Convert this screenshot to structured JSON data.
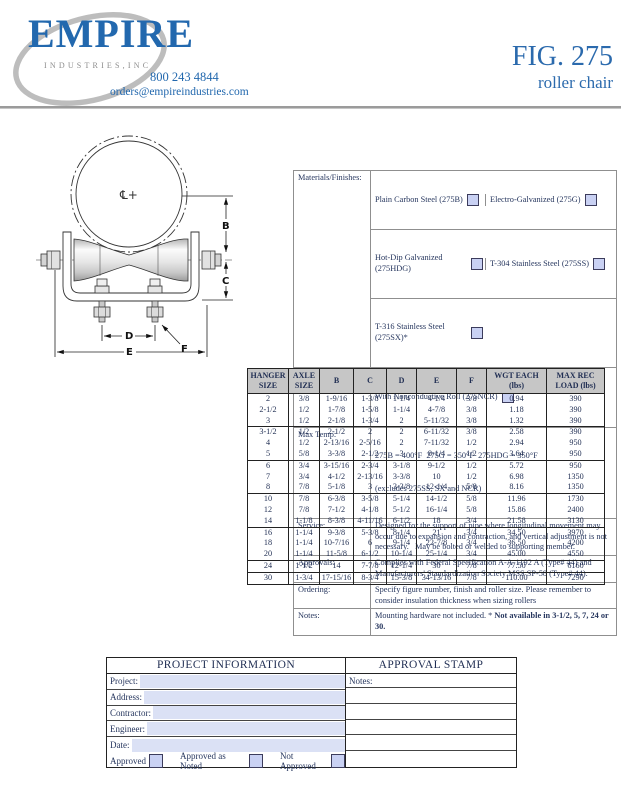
{
  "header": {
    "logo_name": "EMPIRE",
    "logo_sub": "INDUSTRIES,INC",
    "phone": "800 243 4844",
    "email": "orders@empireindustries.com",
    "figure": "FIG. 275",
    "product": "roller chair"
  },
  "colors": {
    "brand_blue": "#2268ae",
    "navy_text": "#1f2d52",
    "checkbox_fill": "#c9d1f3",
    "input_fill": "#dbe1f5",
    "table_header_bg": "#c6c6c6"
  },
  "drawing": {
    "centerline_symbol": "℄+",
    "dim_b": "B",
    "dim_c": "C",
    "dim_d": "D",
    "dim_e": "E",
    "dim_f": "F"
  },
  "specs": {
    "labels": {
      "materials": "Materials/Finishes:",
      "variants": "Variants:",
      "max_temp": "Max Temp:",
      "service": "Service:",
      "approvals": "Approvals:",
      "ordering": "Ordering:",
      "notes": "Notes:"
    },
    "materials": [
      [
        "Plain Carbon Steel (275B)",
        "Electro-Galvanized (275G)"
      ],
      [
        "Hot-Dip Galvanized (275HDG)",
        "T-304 Stainless Steel (275SS)"
      ],
      [
        "T-316 Stainless Steel (275SX)*"
      ]
    ],
    "variants_text": "With Nonconductive Roll (275NCR)",
    "max_temp_line1": "275B = 400°F  275G = 350°F  275HDG = 350°F",
    "max_temp_line2": "(excludes 275SS, SX and NCR)",
    "service_text": "Designed for the support of pipe where longitudinal movement may occur due to expansion and contraction, and vertical adjustment is not necessary.   May be bolted or welded to supporting member.",
    "approvals_text": "Complies with Federal Specification A-A-1192 A (Type# 44) and Manufacturers' Standardization Society MSS SP-58 (Type# 44).",
    "ordering_text": "Specify figure number, finish and roller size. Please remember to consider insulation thickness when sizing rollers",
    "notes_regular": "Mounting hardware not included. * ",
    "notes_bold": "Not available in 3-1/2, 5, 7, 24 or 30."
  },
  "size_table": {
    "headers": [
      "HANGER SIZE",
      "AXLE SIZE",
      "B",
      "C",
      "D",
      "E",
      "F",
      "WGT EACH (lbs)",
      "MAX REC LOAD (lbs)"
    ],
    "groups": [
      [
        [
          "2",
          "3/8",
          "1-9/16",
          "1-3/8",
          "1-1/4",
          "4-1/4",
          "3/8",
          "0.94",
          "390"
        ],
        [
          "2-1/2",
          "1/2",
          "1-7/8",
          "1-5/8",
          "1-1/4",
          "4-7/8",
          "3/8",
          "1.18",
          "390"
        ],
        [
          "3",
          "1/2",
          "2-1/8",
          "1-3/4",
          "2",
          "5-11/32",
          "3/8",
          "1.32",
          "390"
        ]
      ],
      [
        [
          "3-1/2",
          "1/2",
          "2-1/2",
          "2",
          "2",
          "6-11/32",
          "3/8",
          "2.58",
          "390"
        ],
        [
          "4",
          "1/2",
          "2-13/16",
          "2-5/16",
          "2",
          "7-11/32",
          "1/2",
          "2.94",
          "950"
        ],
        [
          "5",
          "5/8",
          "3-3/8",
          "2-1/2",
          "3",
          "8-1/4",
          "1/2",
          "3.64",
          "950"
        ]
      ],
      [
        [
          "6",
          "3/4",
          "3-15/16",
          "2-3/4",
          "3-1/8",
          "9-1/2",
          "1/2",
          "5.72",
          "950"
        ],
        [
          "7",
          "3/4",
          "4-1/2",
          "2-13/16",
          "3-3/8",
          "10",
          "1/2",
          "6.98",
          "1350"
        ],
        [
          "8",
          "7/8",
          "5-1/8",
          "3",
          "3-3/8",
          "12-1/4",
          "5/8",
          "8.16",
          "1350"
        ]
      ],
      [
        [
          "10",
          "7/8",
          "6-3/8",
          "3-5/8",
          "5-1/4",
          "14-1/2",
          "5/8",
          "11.96",
          "1730"
        ],
        [
          "12",
          "7/8",
          "7-1/2",
          "4-1/8",
          "5-1/2",
          "16-1/4",
          "5/8",
          "15.86",
          "2400"
        ],
        [
          "14",
          "1-1/8",
          "8-3/8",
          "4-11/16",
          "6-1/2",
          "18",
          "3/4",
          "21.58",
          "3130"
        ]
      ],
      [
        [
          "16",
          "1-1/4",
          "9-3/8",
          "5-3/8",
          "8-1/4",
          "21",
          "3/4",
          "34.50",
          "3970"
        ],
        [
          "18",
          "1-1/4",
          "10-7/16",
          "6",
          "9-1/4",
          "22-7/8",
          "3/4",
          "36.50",
          "4200"
        ],
        [
          "20",
          "1-1/4",
          "11-5/8",
          "6-1/2",
          "10-1/4",
          "25-1/4",
          "3/4",
          "45.00",
          "4550"
        ]
      ],
      [
        [
          "24",
          "1-1/2",
          "14",
          "7-7/8",
          "12-1/4",
          "30",
          "7/8",
          "77.50",
          "6160"
        ]
      ],
      [
        [
          "30",
          "1-3/4",
          "17-15/16",
          "8-3/4",
          "15-3/8",
          "34-13/16",
          "7/8",
          "110.00",
          "7290"
        ]
      ]
    ]
  },
  "form": {
    "project_info_title": "PROJECT INFORMATION",
    "approval_stamp_title": "APPROVAL STAMP",
    "fields": [
      "Project:",
      "Address:",
      "Contractor:",
      "Engineer:",
      "Date:"
    ],
    "approval_options": [
      "Approved",
      "Approved as Noted",
      "Not Approved"
    ],
    "notes_label": "Notes:",
    "notes_lines_count": 5
  }
}
